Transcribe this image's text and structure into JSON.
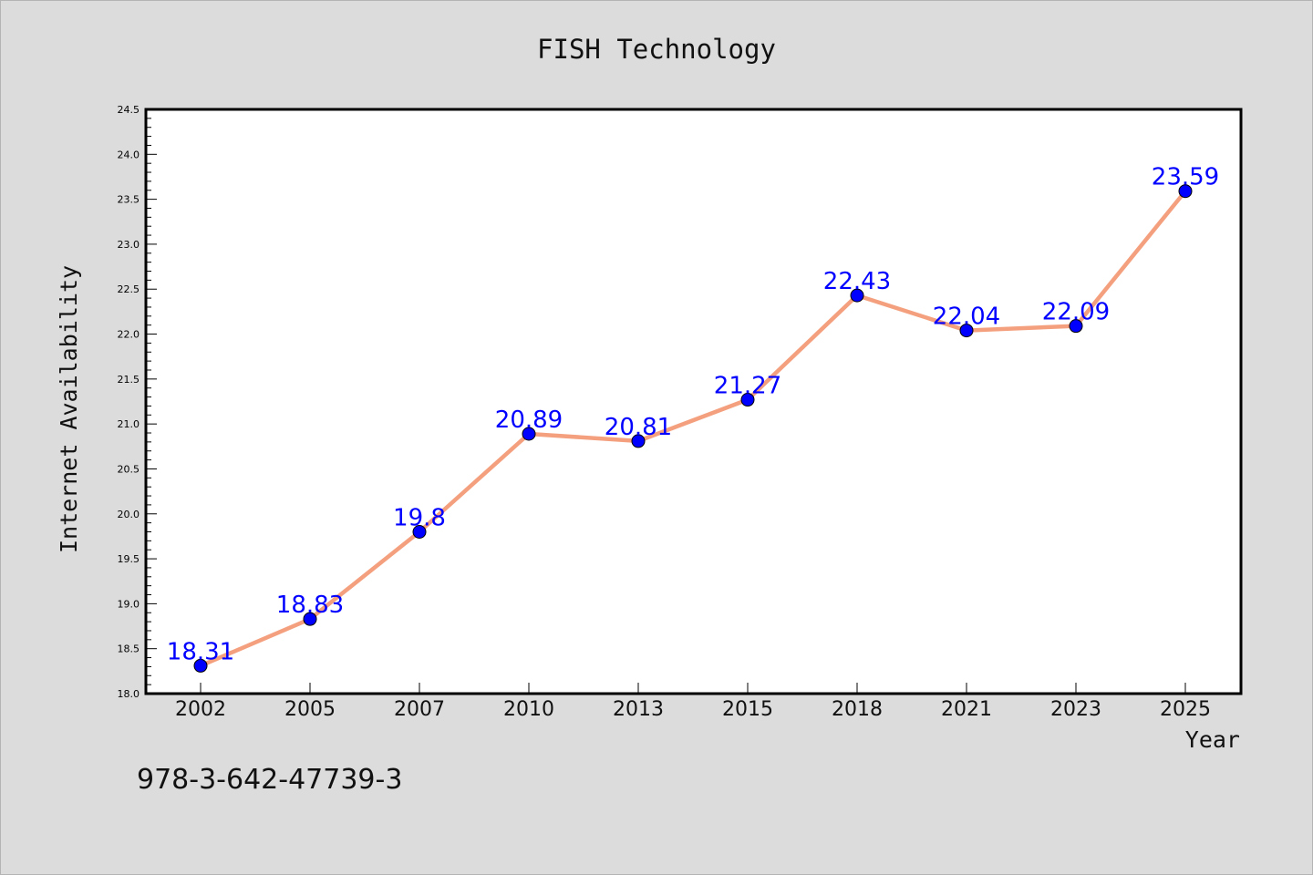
{
  "chart_data": {
    "type": "line",
    "title": "FISH Technology",
    "xlabel": "Year",
    "ylabel": "Internet Availability",
    "categories": [
      "2002",
      "2005",
      "2007",
      "2010",
      "2013",
      "2015",
      "2018",
      "2021",
      "2023",
      "2025"
    ],
    "series": [
      {
        "values": [
          18.31,
          18.83,
          19.8,
          20.89,
          20.81,
          21.27,
          22.43,
          22.04,
          22.09,
          23.59
        ],
        "labels": [
          "18.31",
          "18.83",
          "19.8",
          "20.89",
          "20.81",
          "21.27",
          "22.43",
          "22.04",
          "22.09",
          "23.59"
        ],
        "line_color": "#f4a07e",
        "marker_color": "#0000ff"
      }
    ],
    "ylim": [
      18.0,
      24.5
    ],
    "yticks": [
      "18.0",
      "18.5",
      "19.0",
      "19.5",
      "20.0",
      "20.5",
      "21.0",
      "21.5",
      "22.0",
      "22.5",
      "23.0",
      "23.5",
      "24.0",
      "24.5"
    ],
    "grid": false,
    "label_color": "#0000ff"
  },
  "footer": {
    "isbn": "978-3-642-47739-3"
  }
}
